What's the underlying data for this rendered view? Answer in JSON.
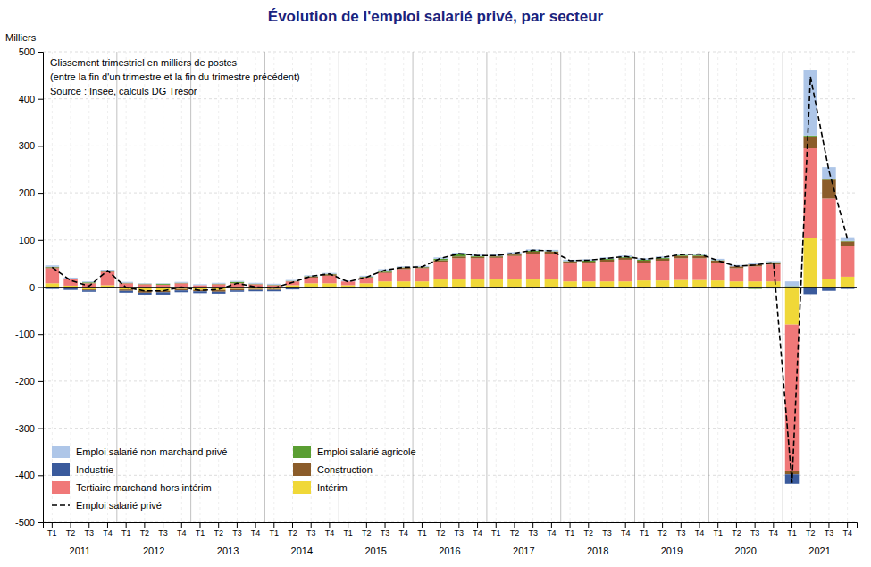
{
  "chart_data": {
    "type": "bar",
    "stacked": true,
    "title": "Évolution de l'emploi salarié privé, par secteur",
    "ylabel": "Milliers",
    "annotation": "Glissement trimestriel en milliers de postes\n(entre la fin d'un trimestre et la fin du trimestre précédent)\nSource : Insee, calculs DG Trésor",
    "ylim": [
      -500,
      500
    ],
    "yticks": [
      -500,
      -400,
      -300,
      -200,
      -100,
      0,
      100,
      200,
      300,
      400,
      500
    ],
    "grid": true,
    "legend": "lower left",
    "groups": [
      2011,
      2012,
      2013,
      2014,
      2015,
      2016,
      2017,
      2018,
      2019,
      2020,
      2021
    ],
    "categories": [
      "T1",
      "T2",
      "T3",
      "T4",
      "T1",
      "T2",
      "T3",
      "T4",
      "T1",
      "T2",
      "T3",
      "T4",
      "T1",
      "T2",
      "T3",
      "T4",
      "T1",
      "T2",
      "T3",
      "T4",
      "T1",
      "T2",
      "T3",
      "T4",
      "T1",
      "T2",
      "T3",
      "T4",
      "T1",
      "T2",
      "T3",
      "T4",
      "T1",
      "T2",
      "T3",
      "T4",
      "T1",
      "T2",
      "T3",
      "T4",
      "T1",
      "T2",
      "T3",
      "T4"
    ],
    "series": [
      {
        "name": "Intérim",
        "color": "#f0d838",
        "values": [
          8,
          3,
          -5,
          4,
          -5,
          -8,
          -8,
          -4,
          -6,
          -6,
          -4,
          -4,
          -4,
          4,
          8,
          8,
          4,
          8,
          12,
          12,
          12,
          16,
          16,
          16,
          16,
          16,
          16,
          16,
          12,
          12,
          12,
          12,
          14,
          14,
          15,
          15,
          14,
          12,
          12,
          12,
          -80,
          105,
          18,
          22
        ]
      },
      {
        "name": "Tertiaire marchand hors intérim",
        "color": "#f07878",
        "values": [
          32,
          14,
          8,
          28,
          8,
          6,
          5,
          8,
          4,
          6,
          8,
          6,
          4,
          8,
          12,
          16,
          8,
          12,
          18,
          26,
          28,
          38,
          45,
          45,
          46,
          50,
          55,
          55,
          38,
          38,
          42,
          46,
          38,
          42,
          46,
          46,
          38,
          28,
          32,
          36,
          -310,
          190,
          170,
          65
        ]
      },
      {
        "name": "Construction",
        "color": "#8b5c2a",
        "values": [
          2,
          -2,
          -2,
          1,
          -3,
          -4,
          -3,
          -3,
          -3,
          -4,
          -3,
          -2,
          -2,
          -2,
          2,
          3,
          0,
          1,
          2,
          3,
          2,
          3,
          4,
          3,
          3,
          3,
          4,
          4,
          4,
          4,
          4,
          4,
          4,
          4,
          5,
          5,
          4,
          4,
          4,
          4,
          -8,
          25,
          40,
          10
        ]
      },
      {
        "name": "Industrie",
        "color": "#3a5a9c",
        "values": [
          -4,
          -4,
          -3,
          -2,
          -4,
          -4,
          -5,
          -4,
          -4,
          -4,
          -3,
          -3,
          -3,
          -3,
          -2,
          -2,
          -3,
          -3,
          -2,
          -2,
          -2,
          -2,
          -2,
          -2,
          -2,
          -2,
          -2,
          -2,
          -2,
          -2,
          -2,
          -2,
          -2,
          -2,
          -2,
          -2,
          -3,
          -3,
          -3,
          -3,
          -20,
          -15,
          -8,
          -4
        ]
      },
      {
        "name": "Emploi salarié agricole",
        "color": "#5a9e32",
        "values": [
          1,
          1,
          2,
          1,
          1,
          1,
          2,
          1,
          0,
          1,
          3,
          1,
          1,
          1,
          1,
          1,
          0,
          1,
          3,
          1,
          1,
          3,
          5,
          2,
          1,
          2,
          2,
          1,
          1,
          2,
          2,
          2,
          2,
          2,
          2,
          2,
          1,
          0,
          -1,
          1,
          2,
          2,
          2,
          1
        ]
      },
      {
        "name": "Emploi salarié non marchand privé",
        "color": "#aec6e8",
        "values": [
          3,
          2,
          2,
          3,
          2,
          1,
          1,
          2,
          2,
          2,
          2,
          2,
          2,
          2,
          2,
          2,
          2,
          2,
          3,
          2,
          2,
          3,
          3,
          3,
          3,
          3,
          3,
          3,
          3,
          3,
          3,
          3,
          3,
          3,
          3,
          3,
          3,
          3,
          3,
          2,
          10,
          140,
          25,
          8
        ]
      },
      {
        "name": "Emploi salarié privé",
        "type": "line",
        "color": "#000000",
        "line_style": "dashed",
        "values": [
          42,
          14,
          2,
          35,
          -1,
          -8,
          -8,
          0,
          -7,
          -5,
          8,
          0,
          -2,
          10,
          23,
          28,
          11,
          21,
          36,
          42,
          43,
          61,
          71,
          67,
          67,
          72,
          78,
          77,
          56,
          57,
          61,
          65,
          59,
          63,
          69,
          70,
          56,
          44,
          47,
          52,
          -416,
          447,
          247,
          102
        ]
      }
    ]
  }
}
